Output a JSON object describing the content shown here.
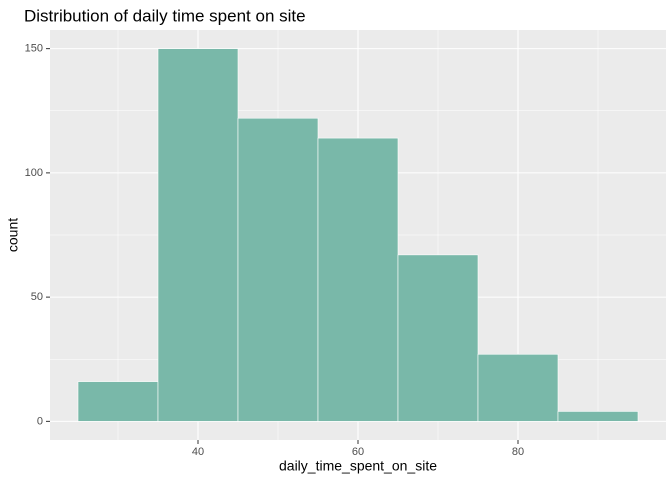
{
  "chart_data": {
    "type": "histogram",
    "title": "Distribution of daily time spent on site",
    "x_label": "daily_time_spent_on_site",
    "y_label": "count",
    "bins": [
      25,
      35,
      45,
      55,
      65,
      75,
      85,
      95
    ],
    "values": [
      16,
      150,
      122,
      114,
      67,
      27,
      4
    ],
    "color": "#79b8a9",
    "xlim": [
      21.5,
      98.5
    ],
    "xticks": [
      40,
      60,
      80
    ],
    "ylim": [
      -7.5,
      157.5
    ],
    "yticks": [
      0,
      50,
      100,
      150
    ],
    "grid": true
  }
}
